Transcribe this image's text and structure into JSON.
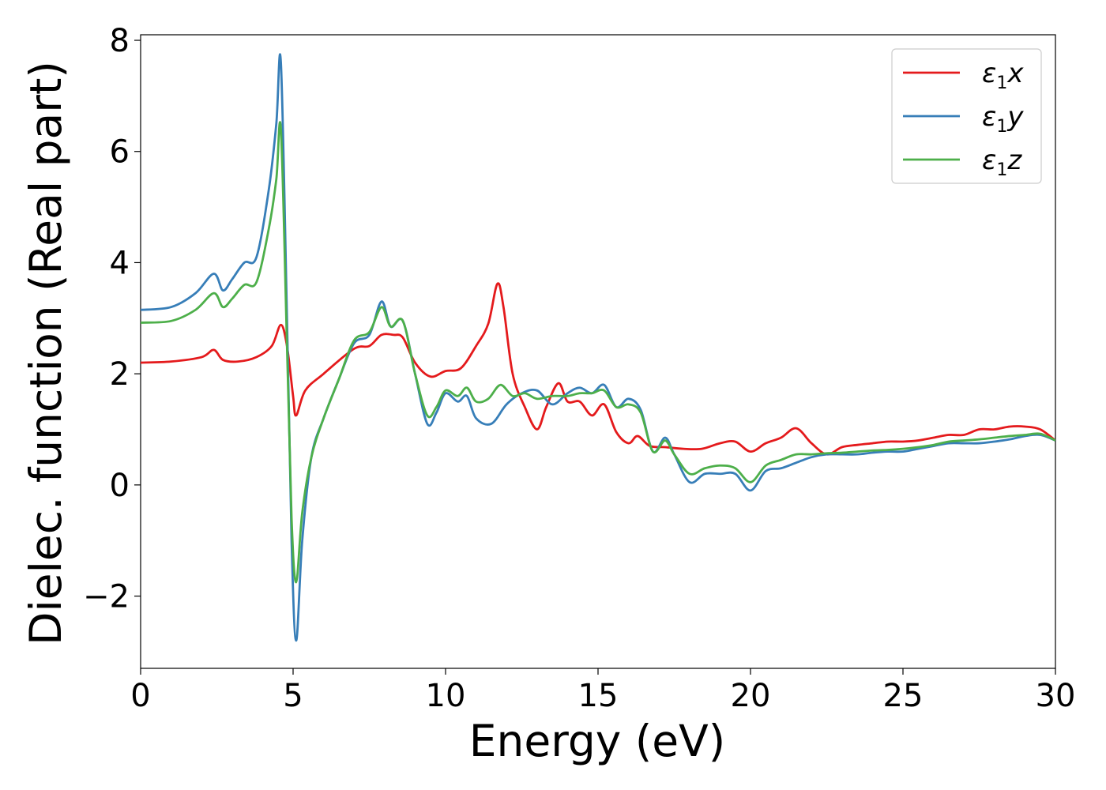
{
  "chart_data": {
    "type": "line",
    "xlabel": "Energy (eV)",
    "ylabel": "Dielec. function (Real part)",
    "xlim": [
      0,
      30
    ],
    "ylim": [
      -3.3,
      8.1
    ],
    "xticks": [
      0,
      5,
      10,
      15,
      20,
      25,
      30
    ],
    "xtick_labels": [
      "0",
      "5",
      "10",
      "15",
      "20",
      "25",
      "30"
    ],
    "yticks": [
      -2,
      0,
      2,
      4,
      6,
      8
    ],
    "ytick_labels": [
      "−2",
      "0",
      "2",
      "4",
      "6",
      "8"
    ],
    "grid": false,
    "legend_position": "top-right",
    "series": [
      {
        "name": "ε1x",
        "legend_base": "ε",
        "legend_sub": "1",
        "legend_tail": "x",
        "color": "#e41a1c",
        "x": [
          0,
          1,
          2,
          2.4,
          2.7,
          3.2,
          3.8,
          4.3,
          4.6,
          4.8,
          5.0,
          5.1,
          5.4,
          6.0,
          7.0,
          7.5,
          7.9,
          8.3,
          8.6,
          9.0,
          9.5,
          10.0,
          10.5,
          11.0,
          11.4,
          11.7,
          11.9,
          12.2,
          12.6,
          13.0,
          13.3,
          13.7,
          14.0,
          14.4,
          14.8,
          15.2,
          15.6,
          16.0,
          16.3,
          16.7,
          17.2,
          17.8,
          18.4,
          19.0,
          19.5,
          20.0,
          20.5,
          21.0,
          21.5,
          22.0,
          22.5,
          23.0,
          23.5,
          24.0,
          24.5,
          25.0,
          25.5,
          26.0,
          26.5,
          27.0,
          27.5,
          28.0,
          28.5,
          29.0,
          29.5,
          30.0
        ],
        "y": [
          2.2,
          2.22,
          2.3,
          2.43,
          2.25,
          2.22,
          2.3,
          2.5,
          2.88,
          2.5,
          1.6,
          1.25,
          1.7,
          2.0,
          2.45,
          2.5,
          2.7,
          2.7,
          2.65,
          2.2,
          1.95,
          2.05,
          2.1,
          2.5,
          2.9,
          3.62,
          3.2,
          2.0,
          1.4,
          1.0,
          1.4,
          1.83,
          1.5,
          1.5,
          1.25,
          1.45,
          0.95,
          0.75,
          0.88,
          0.7,
          0.68,
          0.65,
          0.65,
          0.75,
          0.78,
          0.6,
          0.75,
          0.85,
          1.02,
          0.75,
          0.55,
          0.68,
          0.72,
          0.75,
          0.78,
          0.78,
          0.8,
          0.85,
          0.9,
          0.9,
          1.0,
          1.0,
          1.05,
          1.05,
          1.0,
          0.8
        ]
      },
      {
        "name": "ε1y",
        "legend_base": "ε",
        "legend_sub": "1",
        "legend_tail": "y",
        "color": "#377eb8",
        "x": [
          0,
          1,
          1.8,
          2.4,
          2.7,
          3.0,
          3.4,
          3.8,
          4.2,
          4.45,
          4.6,
          4.8,
          4.95,
          5.1,
          5.3,
          5.6,
          6.0,
          6.5,
          7.0,
          7.5,
          7.9,
          8.2,
          8.6,
          9.0,
          9.4,
          9.7,
          10.0,
          10.4,
          10.7,
          11.0,
          11.5,
          12.0,
          12.5,
          13.0,
          13.5,
          14.0,
          14.4,
          14.8,
          15.2,
          15.6,
          16.0,
          16.4,
          16.8,
          17.2,
          17.5,
          18.0,
          18.5,
          19.0,
          19.5,
          20.0,
          20.5,
          21.0,
          21.5,
          22.0,
          22.5,
          23.0,
          23.5,
          24.0,
          24.5,
          25.0,
          25.5,
          26.0,
          26.5,
          27.0,
          27.5,
          28.0,
          28.5,
          29.0,
          29.5,
          30.0
        ],
        "y": [
          3.15,
          3.2,
          3.45,
          3.8,
          3.5,
          3.7,
          4.0,
          4.1,
          5.3,
          6.5,
          7.6,
          3.0,
          -1.0,
          -2.8,
          -1.0,
          0.5,
          1.2,
          1.9,
          2.55,
          2.7,
          3.3,
          2.85,
          2.95,
          2.0,
          1.1,
          1.3,
          1.65,
          1.5,
          1.6,
          1.2,
          1.1,
          1.45,
          1.65,
          1.7,
          1.45,
          1.65,
          1.75,
          1.65,
          1.8,
          1.4,
          1.55,
          1.35,
          0.6,
          0.85,
          0.55,
          0.05,
          0.2,
          0.2,
          0.2,
          -0.1,
          0.25,
          0.3,
          0.4,
          0.5,
          0.55,
          0.55,
          0.55,
          0.58,
          0.6,
          0.6,
          0.65,
          0.7,
          0.75,
          0.75,
          0.75,
          0.78,
          0.82,
          0.88,
          0.9,
          0.8
        ]
      },
      {
        "name": "ε1z",
        "legend_base": "ε",
        "legend_sub": "1",
        "legend_tail": "z",
        "color": "#4daf4a",
        "x": [
          0,
          1,
          1.8,
          2.4,
          2.7,
          3.0,
          3.4,
          3.8,
          4.2,
          4.45,
          4.6,
          4.8,
          4.95,
          5.1,
          5.3,
          5.6,
          6.0,
          6.5,
          7.0,
          7.5,
          7.9,
          8.2,
          8.6,
          9.0,
          9.4,
          9.7,
          10.0,
          10.4,
          10.7,
          11.0,
          11.4,
          11.8,
          12.2,
          12.6,
          13.0,
          13.5,
          14.0,
          14.4,
          14.8,
          15.2,
          15.6,
          16.0,
          16.4,
          16.8,
          17.2,
          17.5,
          18.0,
          18.5,
          19.0,
          19.5,
          20.0,
          20.5,
          21.0,
          21.5,
          22.0,
          22.5,
          23.0,
          23.5,
          24.0,
          24.5,
          25.0,
          25.5,
          26.0,
          26.5,
          27.0,
          27.5,
          28.0,
          28.5,
          29.0,
          29.5,
          30.0
        ],
        "y": [
          2.92,
          2.95,
          3.15,
          3.45,
          3.2,
          3.35,
          3.6,
          3.65,
          4.6,
          5.5,
          6.4,
          2.5,
          -0.6,
          -1.75,
          -0.5,
          0.5,
          1.2,
          1.9,
          2.6,
          2.75,
          3.2,
          2.85,
          2.95,
          2.0,
          1.25,
          1.4,
          1.7,
          1.6,
          1.75,
          1.5,
          1.55,
          1.8,
          1.6,
          1.65,
          1.55,
          1.6,
          1.6,
          1.65,
          1.65,
          1.7,
          1.4,
          1.45,
          1.3,
          0.6,
          0.8,
          0.55,
          0.2,
          0.3,
          0.35,
          0.3,
          0.05,
          0.35,
          0.45,
          0.55,
          0.55,
          0.57,
          0.58,
          0.6,
          0.62,
          0.63,
          0.65,
          0.68,
          0.72,
          0.78,
          0.8,
          0.82,
          0.85,
          0.88,
          0.9,
          0.92,
          0.8
        ]
      }
    ]
  }
}
